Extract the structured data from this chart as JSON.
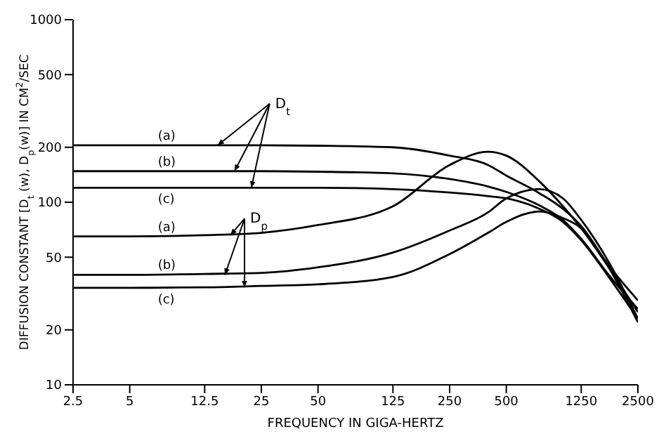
{
  "chart_data": {
    "type": "line",
    "xlabel": "FREQUENCY IN GIGA-HERTZ",
    "ylabel": "DIFFUSION CONSTANT [D$_{t}$ (w), D$_{p}$(w)] IN CM$^{2}$/SEC",
    "x": [
      2.5,
      5,
      12.5,
      25,
      50,
      125,
      250,
      400,
      500,
      750,
      1000,
      1250,
      1750,
      2500
    ],
    "series": [
      {
        "name": "(a)",
        "color": "#000000",
        "values": [
          205,
          205,
          205,
          205,
          204,
          200,
          180,
          160,
          140,
          112,
          92,
          74,
          45,
          29
        ]
      },
      {
        "name": "(b)",
        "color": "#000000",
        "values": [
          148,
          148,
          148,
          148,
          147,
          144,
          134,
          122,
          114,
          96,
          80,
          63,
          40,
          26
        ]
      },
      {
        "name": "(c)",
        "color": "#000000",
        "values": [
          120,
          120,
          120,
          120,
          120,
          118,
          113,
          108,
          105,
          92,
          78,
          62,
          39,
          23
        ]
      },
      {
        "name": "(a)",
        "color": "#000000",
        "values": [
          65,
          65,
          66,
          68,
          75,
          95,
          160,
          189,
          180,
          130,
          95,
          72,
          44,
          25
        ]
      },
      {
        "name": "(b)",
        "color": "#000000",
        "values": [
          40,
          40,
          40.5,
          41,
          44,
          53,
          70,
          88,
          105,
          118,
          105,
          80,
          47,
          23
        ]
      },
      {
        "name": "(c)",
        "color": "#000000",
        "values": [
          34,
          34,
          34.2,
          34.8,
          35.5,
          39,
          52,
          68,
          78,
          89,
          82,
          72,
          44,
          22
        ]
      }
    ],
    "annotations": [
      {
        "text": "D$_{t}$",
        "x": 18,
        "y": 148
      },
      {
        "text": "D$_{p}$",
        "x": 16,
        "y": 40
      }
    ],
    "log": "xy",
    "xlim": [
      2.5,
      2500
    ],
    "ylim": [
      10,
      1000
    ],
    "xticks": [
      2.5,
      5,
      12.5,
      25,
      50,
      125,
      250,
      500,
      1250,
      2500
    ],
    "yticks": [
      10,
      20,
      50,
      100,
      200,
      500,
      1000
    ],
    "marker": "none"
  }
}
